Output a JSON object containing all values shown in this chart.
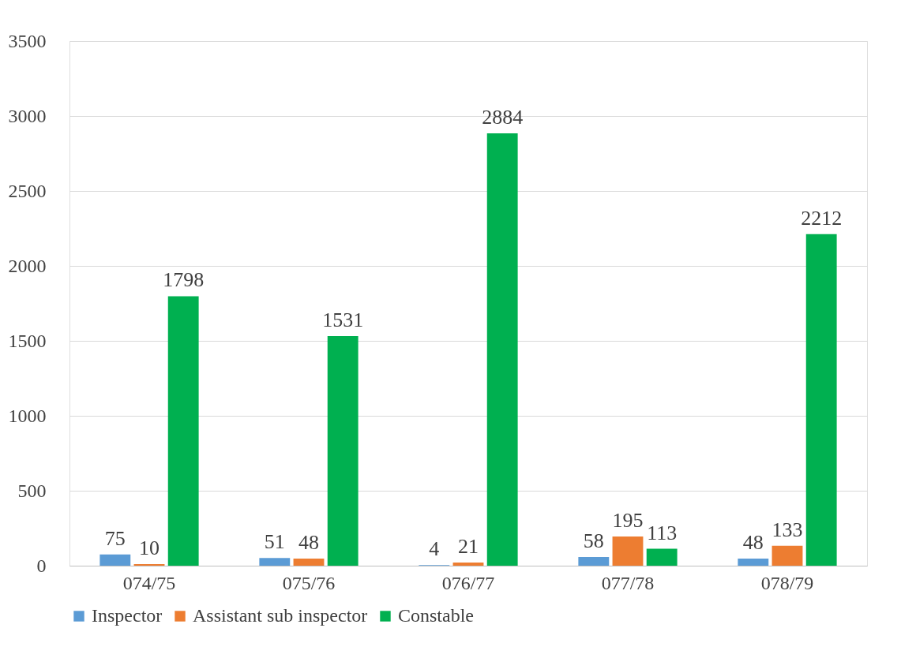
{
  "chart_data": {
    "type": "bar",
    "categories": [
      "074/75",
      "075/76",
      "076/77",
      "077/78",
      "078/79"
    ],
    "series": [
      {
        "name": "Inspector",
        "color": "#5b9bd5",
        "values": [
          75,
          51,
          4,
          58,
          48
        ]
      },
      {
        "name": "Assistant sub inspector",
        "color": "#ed7d31",
        "values": [
          10,
          48,
          21,
          195,
          133
        ]
      },
      {
        "name": "Constable",
        "color": "#00b050",
        "values": [
          1798,
          1531,
          2884,
          113,
          2212
        ]
      }
    ],
    "ylim": [
      0,
      3500
    ],
    "yticks": [
      0,
      500,
      1000,
      1500,
      2000,
      2500,
      3000,
      3500
    ],
    "grid": "y",
    "legend": "bottom",
    "data_labels": true
  }
}
